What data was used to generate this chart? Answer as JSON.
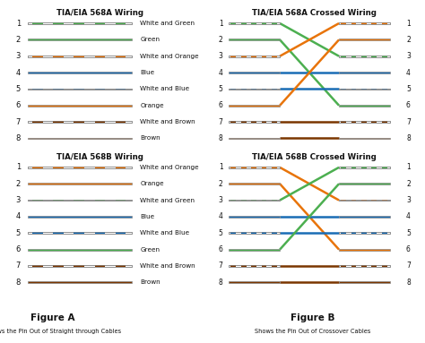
{
  "bg_color": "#ffffff",
  "solid_colors": {
    "white_green": "#4caf50",
    "green": "#4caf50",
    "white_orange": "#e8740a",
    "orange": "#e8740a",
    "white_blue": "#1a6db5",
    "blue": "#1a6db5",
    "white_brown": "#7b3600",
    "brown": "#7b3600"
  },
  "is_striped": {
    "white_green": true,
    "green": false,
    "white_orange": true,
    "orange": false,
    "white_blue": true,
    "blue": false,
    "white_brown": true,
    "brown": false
  },
  "568A": [
    {
      "pin": 1,
      "color": "white_green",
      "label": "White and Green"
    },
    {
      "pin": 2,
      "color": "green",
      "label": "Green"
    },
    {
      "pin": 3,
      "color": "white_orange",
      "label": "White and Orange"
    },
    {
      "pin": 4,
      "color": "blue",
      "label": "Blue"
    },
    {
      "pin": 5,
      "color": "white_blue",
      "label": "White and Blue"
    },
    {
      "pin": 6,
      "color": "orange",
      "label": "Orange"
    },
    {
      "pin": 7,
      "color": "white_brown",
      "label": "White and Brown"
    },
    {
      "pin": 8,
      "color": "brown",
      "label": "Brown"
    }
  ],
  "568B": [
    {
      "pin": 1,
      "color": "white_orange",
      "label": "White and Orange"
    },
    {
      "pin": 2,
      "color": "orange",
      "label": "Orange"
    },
    {
      "pin": 3,
      "color": "white_green",
      "label": "White and Green"
    },
    {
      "pin": 4,
      "color": "blue",
      "label": "Blue"
    },
    {
      "pin": 5,
      "color": "white_blue",
      "label": "White and Blue"
    },
    {
      "pin": 6,
      "color": "green",
      "label": "Green"
    },
    {
      "pin": 7,
      "color": "white_brown",
      "label": "White and Brown"
    },
    {
      "pin": 8,
      "color": "brown",
      "label": "Brown"
    }
  ],
  "title_568A": "TIA/EIA 568A Wiring",
  "title_568B": "TIA/EIA 568B Wiring",
  "title_568A_cross": "TIA/EIA 568A Crossed Wiring",
  "title_568B_cross": "TIA/EIA 568B Crossed Wiring",
  "fig_A": "Figure A",
  "fig_B": "Figure B",
  "caption_A": "Shows the Pin Out of Straight through Cables",
  "caption_B": "Shows the Pin Out of Crossover Cables",
  "A_cross_right_order": [
    3,
    6,
    1,
    4,
    5,
    2,
    7,
    8
  ],
  "B_cross_right_order": [
    3,
    6,
    1,
    4,
    5,
    2,
    7,
    8
  ]
}
